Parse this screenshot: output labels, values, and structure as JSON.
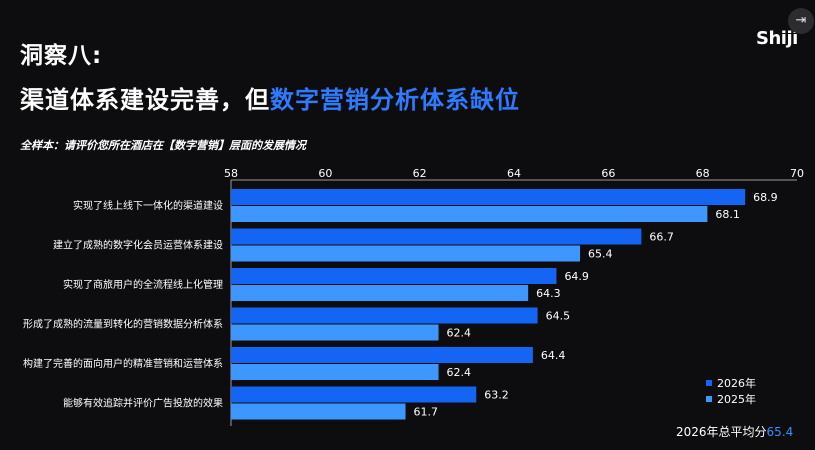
{
  "heading": {
    "line1": "洞察八:",
    "line2_main": "渠道体系建设完善，但",
    "line2_accent": "数字营销分析体系缺位"
  },
  "logo_text": "Shiji",
  "corner_icon": "exit-icon",
  "footer": {
    "avg_label": "2026年总平均分",
    "avg_value": "65.4"
  },
  "colors": {
    "series_2026": "#1565f5",
    "series_2025": "#3d97ff",
    "accent": "#2e7bff",
    "background": "#0d0d0f"
  },
  "chart_data": {
    "type": "bar",
    "orientation": "horizontal",
    "title": "全样本：请评价您所在酒店在【数字营销】层面的发展情况",
    "categories": [
      "实现了线上线下一体化的渠道建设",
      "建立了成熟的数字化会员运营体系建设",
      "实现了商旅用户的全流程线上化管理",
      "形成了成熟的流量到转化的营销数据分析体系",
      "构建了完善的面向用户的精准营销和运营体系",
      "能够有效追踪并评价广告投放的效果"
    ],
    "series": [
      {
        "name": "2026年",
        "values": [
          68.9,
          66.7,
          64.9,
          64.5,
          64.4,
          63.2
        ]
      },
      {
        "name": "2025年",
        "values": [
          68.1,
          65.4,
          64.3,
          62.4,
          62.4,
          61.7
        ]
      }
    ],
    "xlim": [
      58,
      70
    ],
    "xticks": [
      58,
      60,
      62,
      64,
      66,
      68,
      70
    ],
    "tick_labels": [
      "58",
      "60",
      "62",
      "64",
      "66",
      "68",
      "70"
    ],
    "legend_position": "bottom-right",
    "grid": false
  }
}
